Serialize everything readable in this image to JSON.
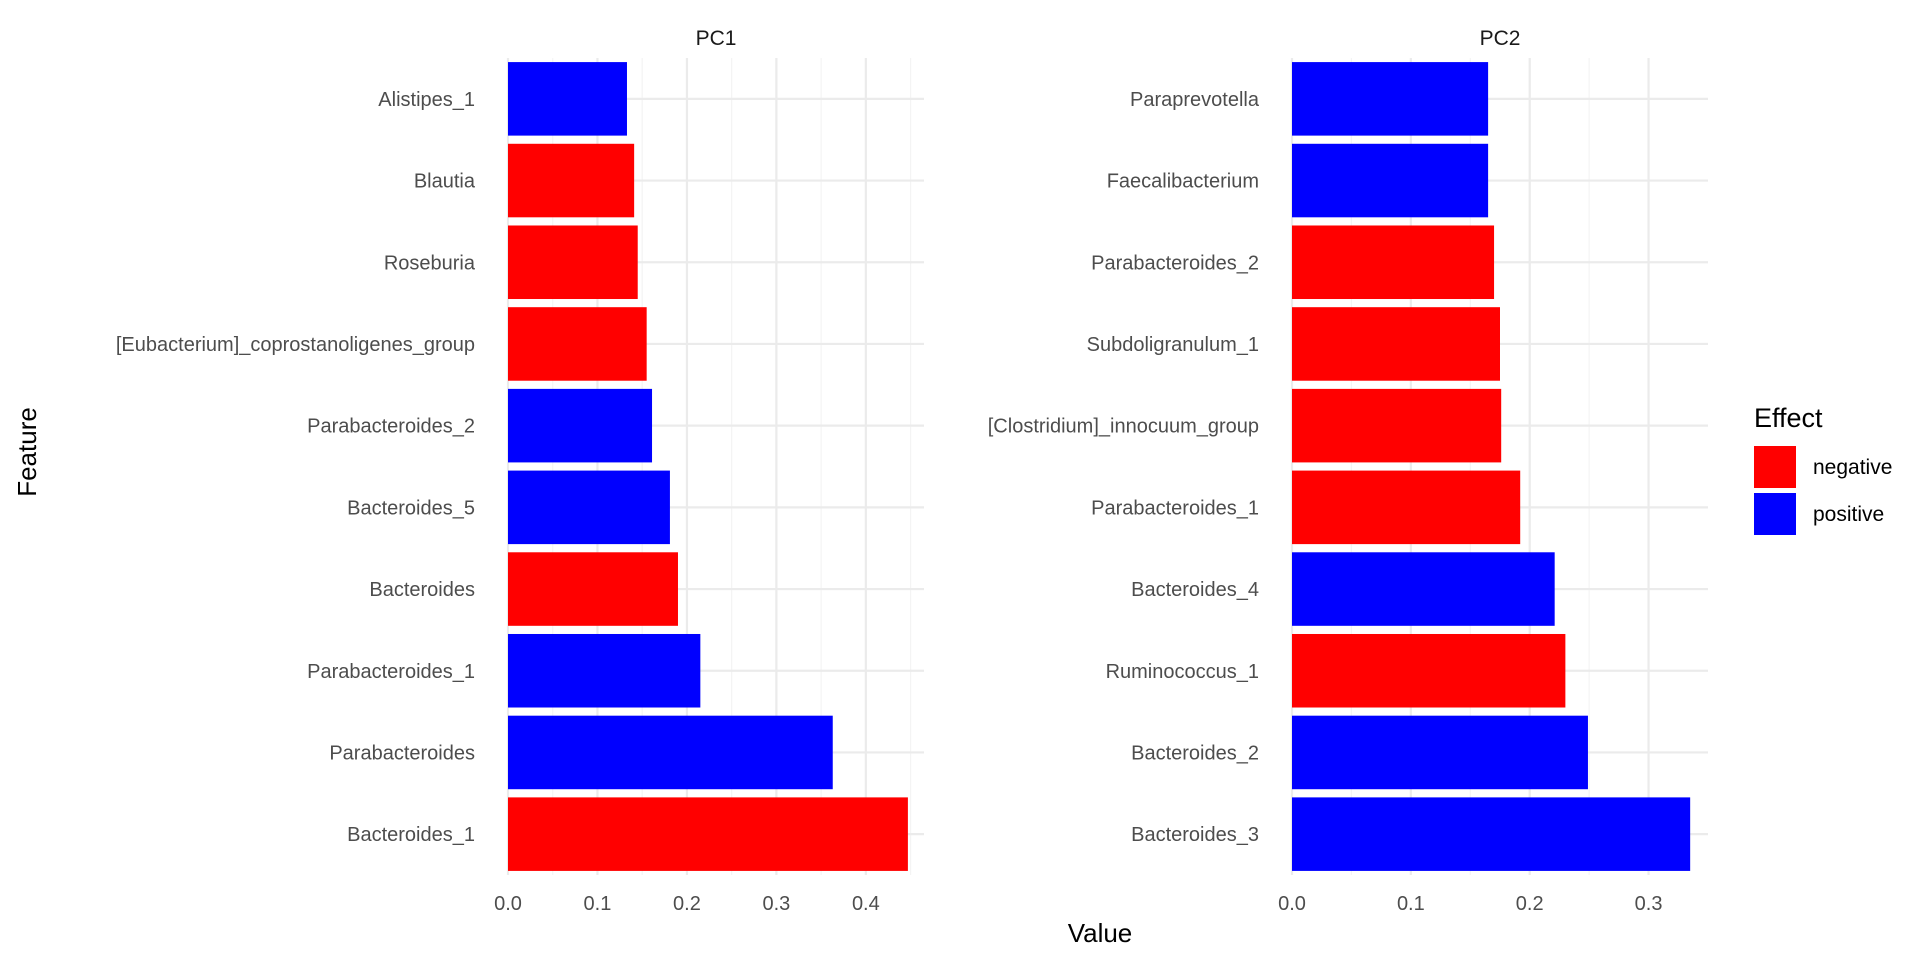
{
  "chart_data": {
    "type": "bar",
    "orientation": "horizontal",
    "xlabel": "Value",
    "ylabel": "Feature",
    "grid": true,
    "legend": {
      "title": "Effect",
      "placement": "right",
      "entries": [
        {
          "label": "negative",
          "color": "#ff0000"
        },
        {
          "label": "positive",
          "color": "#0000ff"
        }
      ]
    },
    "panels": [
      {
        "title": "PC1",
        "xlim": [
          0,
          0.465
        ],
        "xticks": [
          "0.0",
          "0.1",
          "0.2",
          "0.3",
          "0.4"
        ],
        "bars": [
          {
            "feature": "Alistipes_1",
            "value": 0.133,
            "effect": "positive"
          },
          {
            "feature": "Blautia",
            "value": 0.141,
            "effect": "negative"
          },
          {
            "feature": "Roseburia",
            "value": 0.145,
            "effect": "negative"
          },
          {
            "feature": "[Eubacterium]_coprostanoligenes_group",
            "value": 0.155,
            "effect": "negative"
          },
          {
            "feature": "Parabacteroides_2",
            "value": 0.161,
            "effect": "positive"
          },
          {
            "feature": "Bacteroides_5",
            "value": 0.181,
            "effect": "positive"
          },
          {
            "feature": "Bacteroides",
            "value": 0.19,
            "effect": "negative"
          },
          {
            "feature": "Parabacteroides_1",
            "value": 0.215,
            "effect": "positive"
          },
          {
            "feature": "Parabacteroides",
            "value": 0.363,
            "effect": "positive"
          },
          {
            "feature": "Bacteroides_1",
            "value": 0.447,
            "effect": "negative"
          }
        ]
      },
      {
        "title": "PC2",
        "xlim": [
          0,
          0.35
        ],
        "xticks": [
          "0.0",
          "0.1",
          "0.2",
          "0.3"
        ],
        "bars": [
          {
            "feature": "Paraprevotella",
            "value": 0.165,
            "effect": "positive"
          },
          {
            "feature": "Faecalibacterium",
            "value": 0.165,
            "effect": "positive"
          },
          {
            "feature": "Parabacteroides_2",
            "value": 0.17,
            "effect": "negative"
          },
          {
            "feature": "Subdoligranulum_1",
            "value": 0.175,
            "effect": "negative"
          },
          {
            "feature": "[Clostridium]_innocuum_group",
            "value": 0.176,
            "effect": "negative"
          },
          {
            "feature": "Parabacteroides_1",
            "value": 0.192,
            "effect": "negative"
          },
          {
            "feature": "Bacteroides_4",
            "value": 0.221,
            "effect": "positive"
          },
          {
            "feature": "Ruminococcus_1",
            "value": 0.23,
            "effect": "negative"
          },
          {
            "feature": "Bacteroides_2",
            "value": 0.249,
            "effect": "positive"
          },
          {
            "feature": "Bacteroides_3",
            "value": 0.335,
            "effect": "positive"
          }
        ]
      }
    ]
  }
}
